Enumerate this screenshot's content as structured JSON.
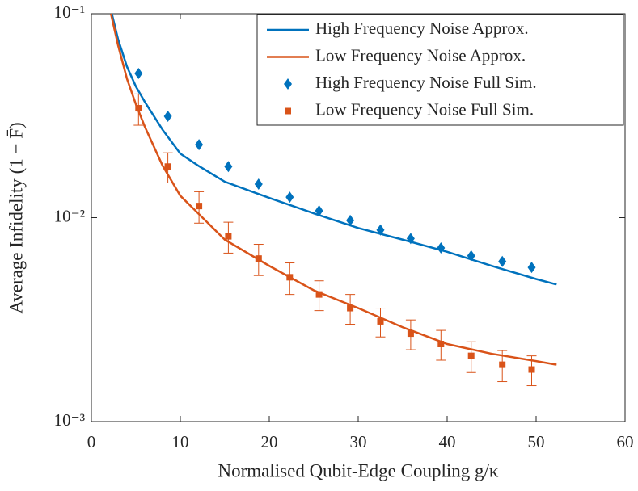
{
  "chart_data": {
    "type": "line",
    "xlabel": "Normalised Qubit-Edge Coupling g/κ",
    "ylabel": "Average Infidelity (1 − F̄)",
    "xlim": [
      0,
      60
    ],
    "xticks": [
      0,
      10,
      20,
      30,
      40,
      50,
      60
    ],
    "ylim": [
      0.001,
      0.1
    ],
    "yticks": [
      {
        "value": 0.1,
        "label": "10⁻¹"
      },
      {
        "value": 0.01,
        "label": "10⁻²"
      },
      {
        "value": 0.001,
        "label": "10⁻³"
      }
    ],
    "yscale": "log",
    "legend": "northeast",
    "series": [
      {
        "name": "High Frequency Noise Approx.",
        "color": "#0072BD",
        "mode": "line",
        "x": [
          2.3,
          3,
          4,
          5,
          6,
          8,
          10,
          12,
          15,
          20,
          25,
          30,
          35,
          40,
          45,
          50,
          52.3
        ],
        "values": [
          0.1,
          0.075,
          0.055,
          0.044,
          0.037,
          0.027,
          0.0206,
          0.018,
          0.015,
          0.0125,
          0.0105,
          0.0089,
          0.0078,
          0.0068,
          0.0058,
          0.005,
          0.0047
        ]
      },
      {
        "name": "Low Frequency Noise Approx.",
        "color": "#D95319",
        "mode": "line",
        "x": [
          2.2,
          3,
          4,
          5,
          6,
          8,
          10,
          12,
          15,
          20,
          25,
          30,
          35,
          40,
          45,
          50,
          52.3
        ],
        "values": [
          0.1,
          0.07,
          0.048,
          0.036,
          0.028,
          0.018,
          0.0128,
          0.0105,
          0.0078,
          0.0058,
          0.0044,
          0.0036,
          0.0029,
          0.0024,
          0.00215,
          0.00198,
          0.0019
        ]
      },
      {
        "name": "High Frequency Noise Full Sim.",
        "color": "#0072BD",
        "mode": "markers",
        "marker": "diamond",
        "x": [
          5.3,
          8.6,
          12.1,
          15.4,
          18.8,
          22.3,
          25.6,
          29.1,
          32.5,
          35.9,
          39.3,
          42.7,
          46.2,
          49.5
        ],
        "values": [
          0.0509,
          0.0314,
          0.0228,
          0.0178,
          0.0146,
          0.0126,
          0.0108,
          0.0097,
          0.0087,
          0.0079,
          0.0071,
          0.0065,
          0.0061,
          0.0057
        ]
      },
      {
        "name": "Low Frequency Noise Full Sim.",
        "color": "#D95319",
        "mode": "markers",
        "marker": "square",
        "x": [
          5.3,
          8.6,
          12.1,
          15.4,
          18.8,
          22.3,
          25.6,
          29.1,
          32.5,
          35.9,
          39.3,
          42.7,
          46.2,
          49.5
        ],
        "values": [
          0.0344,
          0.0178,
          0.0114,
          0.0081,
          0.0063,
          0.0051,
          0.0042,
          0.0036,
          0.0031,
          0.0027,
          0.0024,
          0.0021,
          0.0019,
          0.0018
        ],
        "errors": [
          0.006,
          0.003,
          0.002,
          0.0014,
          0.0011,
          0.0009,
          0.0007,
          0.0006,
          0.0005,
          0.00045,
          0.0004,
          0.00036,
          0.00033,
          0.0003
        ]
      }
    ]
  }
}
